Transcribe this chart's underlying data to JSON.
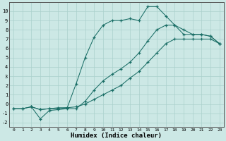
{
  "xlabel": "Humidex (Indice chaleur)",
  "bg_color": "#cce8e5",
  "grid_color": "#aad0cc",
  "line_color": "#1a6e66",
  "xlim": [
    -0.5,
    23.5
  ],
  "ylim": [
    -2.5,
    11
  ],
  "xticks": [
    0,
    1,
    2,
    3,
    4,
    5,
    6,
    7,
    8,
    9,
    10,
    11,
    12,
    13,
    14,
    15,
    16,
    17,
    18,
    19,
    20,
    21,
    22,
    23
  ],
  "yticks": [
    -2,
    -1,
    0,
    1,
    2,
    3,
    4,
    5,
    6,
    7,
    8,
    9,
    10
  ],
  "line1_x": [
    0,
    1,
    2,
    3,
    4,
    5,
    6,
    7,
    8,
    9,
    10,
    11,
    12,
    13,
    14,
    15,
    16,
    17,
    18,
    19,
    20,
    21,
    22,
    23
  ],
  "line1_y": [
    -0.5,
    -0.5,
    -0.3,
    -0.6,
    -0.5,
    -0.5,
    -0.4,
    -0.3,
    0.0,
    0.5,
    1.0,
    1.5,
    2.0,
    2.8,
    3.5,
    4.5,
    5.5,
    6.5,
    7.0,
    7.0,
    7.0,
    7.0,
    7.0,
    6.5
  ],
  "line2_x": [
    0,
    1,
    2,
    3,
    4,
    5,
    6,
    7,
    8,
    9,
    10,
    11,
    12,
    13,
    14,
    15,
    16,
    17,
    18,
    19,
    20,
    21,
    22,
    23
  ],
  "line2_y": [
    -0.5,
    -0.5,
    -0.3,
    -0.6,
    -0.5,
    -0.4,
    -0.4,
    2.2,
    5.0,
    7.2,
    8.5,
    9.0,
    9.0,
    9.2,
    9.0,
    10.5,
    10.5,
    9.5,
    8.5,
    8.0,
    7.5,
    7.5,
    7.3,
    6.5
  ],
  "line3_x": [
    2,
    3,
    4,
    5,
    6,
    7,
    8,
    9,
    10,
    11,
    12,
    13,
    14,
    15,
    16,
    17,
    18,
    19,
    20,
    21,
    22,
    23
  ],
  "line3_y": [
    -0.3,
    -1.6,
    -0.7,
    -0.6,
    -0.5,
    -0.5,
    0.3,
    1.5,
    2.5,
    3.2,
    3.8,
    4.5,
    5.5,
    6.8,
    8.0,
    8.5,
    8.5,
    7.5,
    7.5,
    7.5,
    7.3,
    6.5
  ]
}
